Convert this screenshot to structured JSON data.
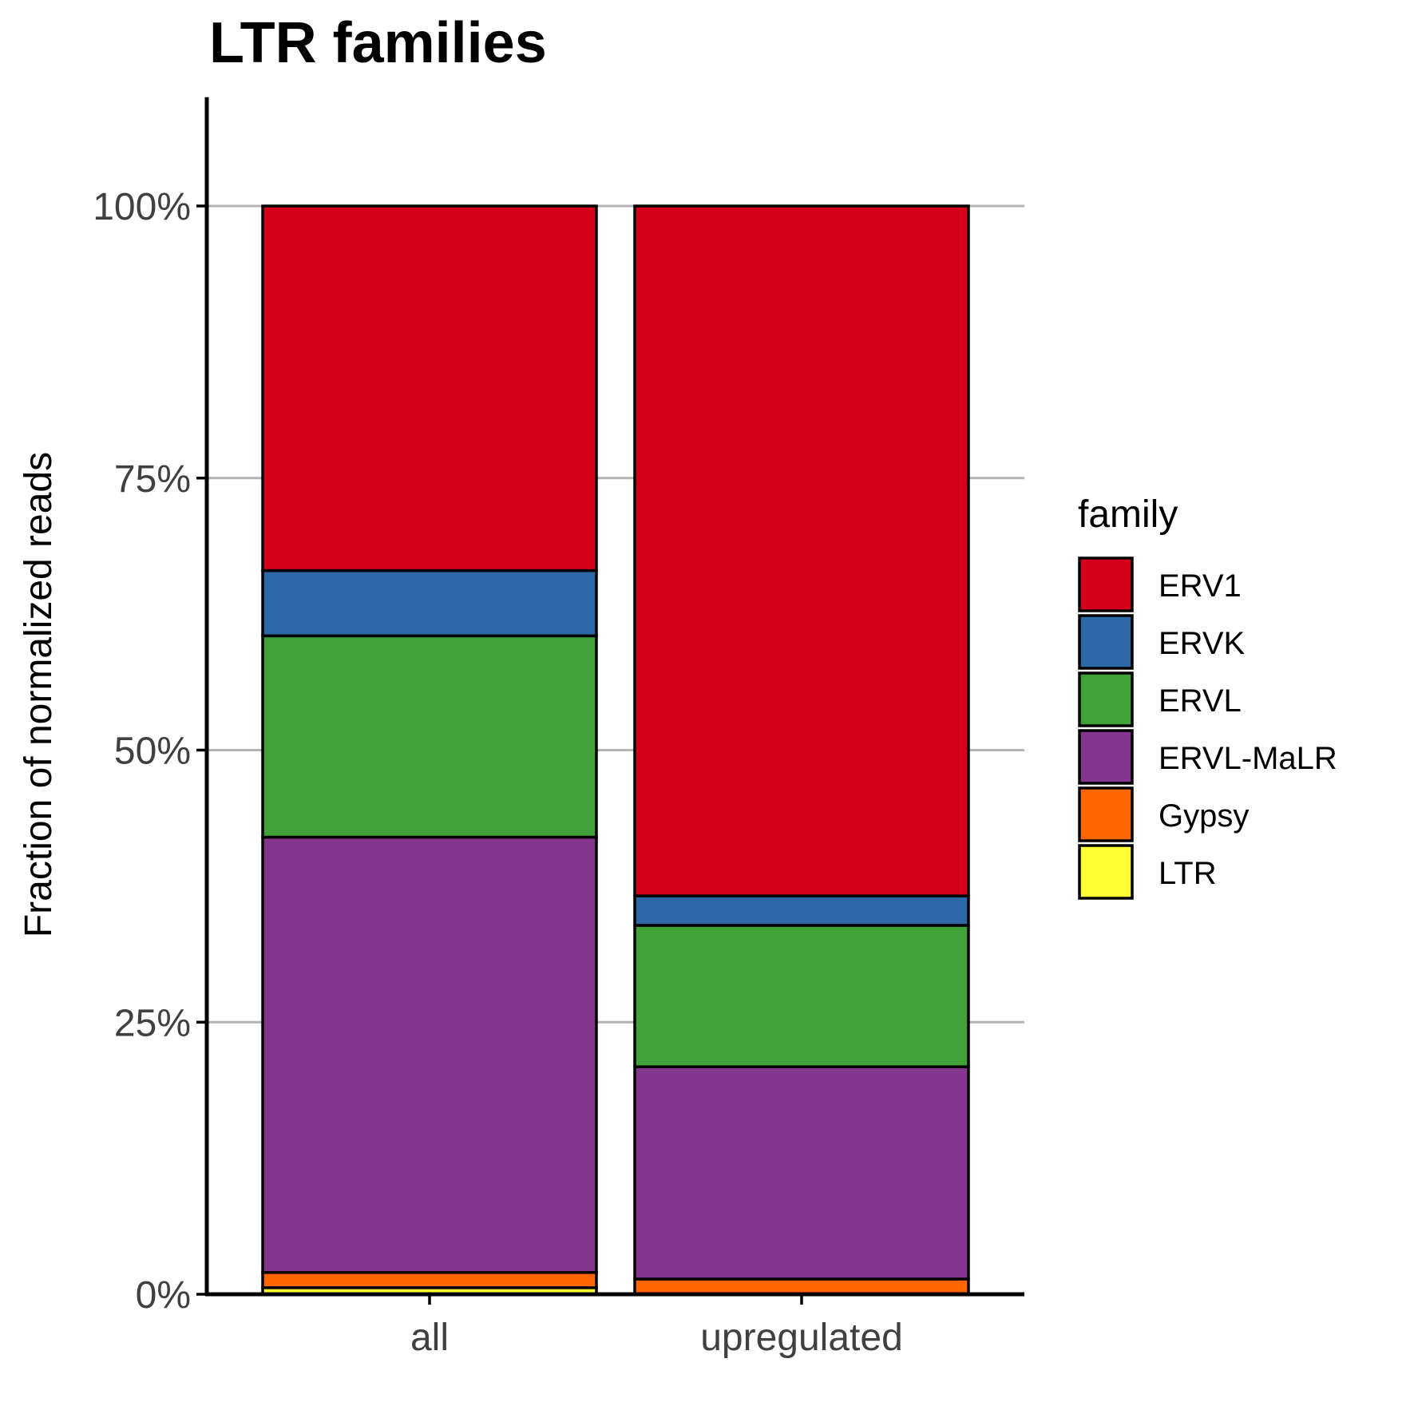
{
  "chart_data": {
    "type": "bar",
    "stacked": true,
    "title": "LTR families",
    "xlabel": "",
    "ylabel": "Fraction of normalized reads",
    "ylim": [
      0,
      1.1
    ],
    "yticks": [
      0,
      0.25,
      0.5,
      0.75,
      1.0
    ],
    "ytick_labels": [
      "0%",
      "25%",
      "50%",
      "75%",
      "100%"
    ],
    "grid": "horizontal major",
    "categories": [
      "all",
      "upregulated"
    ],
    "legend": {
      "title": "family",
      "position": "right"
    },
    "series": [
      {
        "name": "LTR",
        "color": "#FFFF33",
        "values": [
          0.006,
          0.0
        ]
      },
      {
        "name": "Gypsy",
        "color": "#FF6600",
        "values": [
          0.014,
          0.014
        ]
      },
      {
        "name": "ERVL-MaLR",
        "color": "#84368F",
        "values": [
          0.4,
          0.195
        ]
      },
      {
        "name": "ERVL",
        "color": "#41A23A",
        "values": [
          0.185,
          0.13
        ]
      },
      {
        "name": "ERVK",
        "color": "#2D69A8",
        "values": [
          0.06,
          0.027
        ]
      },
      {
        "name": "ERV1",
        "color": "#D7001A",
        "values": [
          0.335,
          0.634
        ]
      }
    ],
    "legend_order": [
      "ERV1",
      "ERVK",
      "ERVL",
      "ERVL-MaLR",
      "Gypsy",
      "LTR"
    ]
  }
}
